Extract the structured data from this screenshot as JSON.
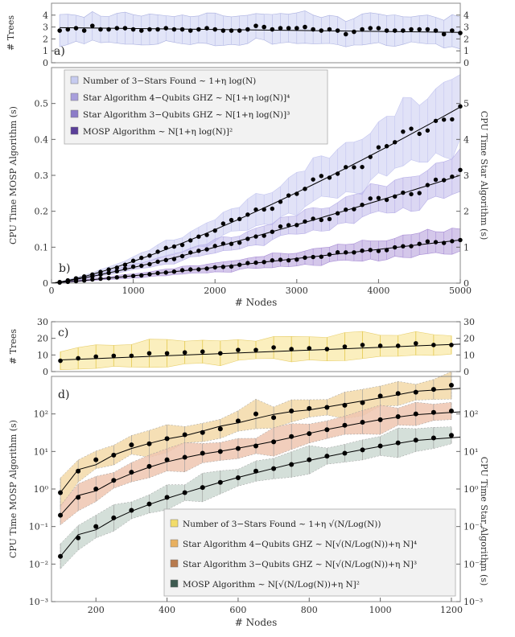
{
  "chart_data": [
    {
      "panel": "a",
      "panel_label": "a)",
      "type": "line",
      "ylabel": "# Trees",
      "xlabel": "",
      "xlim": [
        0,
        5000
      ],
      "ylim": [
        0,
        5
      ],
      "yticks": [
        0,
        1,
        2,
        3,
        4
      ],
      "yticks_right": [
        0,
        1,
        2,
        3,
        4
      ],
      "x_start": 100,
      "x_step": 100,
      "series": [
        {
          "values": [
            2.7,
            2.8,
            2.9,
            2.7,
            3.1,
            2.8,
            2.8,
            2.9,
            2.9,
            2.8,
            2.7,
            2.8,
            2.8,
            2.9,
            2.8,
            2.8,
            2.7,
            2.8,
            2.9,
            2.8,
            2.7,
            2.7,
            2.7,
            2.8,
            3.1,
            3.0,
            2.8,
            2.9,
            2.9,
            2.9,
            3.0,
            2.8,
            2.7,
            2.8,
            2.7,
            2.4,
            2.6,
            2.8,
            2.9,
            2.9,
            2.7,
            2.7,
            2.7,
            2.8,
            2.8,
            2.8,
            2.7,
            2.4,
            2.7,
            2.5
          ]
        }
      ],
      "fit": [
        2.95,
        2.55
      ],
      "band_halfwidth": 1.2
    },
    {
      "panel": "b",
      "panel_label": "b)",
      "type": "scatter",
      "xlabel": "# Nodes",
      "ylabel": "CPU Time MOSP Algorithm (s)",
      "ylabel_right": "CPU Time Star Algorithm (s)",
      "xlim": [
        0,
        5000
      ],
      "ylim": [
        0,
        0.6
      ],
      "xticks": [
        0,
        1000,
        2000,
        3000,
        4000,
        5000
      ],
      "yticks": [
        0,
        0.1,
        0.2,
        0.3,
        0.4,
        0.5
      ],
      "yticks_right": [
        0,
        1,
        2,
        3,
        4,
        5
      ],
      "legend_position": "top-left",
      "legend": [
        {
          "label": "Number of 3−Stars Found ∼ 1+η log(N)",
          "color": "#c6cbef"
        },
        {
          "label": "Star Algorithm 4−Qubits GHZ ∼ N[1+η log(N)]⁴",
          "color": "#a89fdc"
        },
        {
          "label": "Star Algorithm 3−Qubits GHZ ∼ N[1+η log(N)]³",
          "color": "#8c7cc8"
        },
        {
          "label": "MOSP Algorithm ∼ N[1+η log(N)]²",
          "color": "#5a3f99"
        }
      ],
      "series": [
        {
          "name": "Star Algorithm 4−Qubits GHZ",
          "xmax": 5000,
          "ymax": 0.49,
          "exp": 1.3,
          "points": 50,
          "band": 0.18,
          "fill": "#c4c6f0"
        },
        {
          "name": "Star Algorithm 3−Qubits GHZ",
          "xmax": 5000,
          "ymax": 0.3,
          "exp": 1.2,
          "points": 50,
          "band": 0.15,
          "fill": "#b8b0e8"
        },
        {
          "name": "MOSP Algorithm",
          "xmax": 5000,
          "ymax": 0.12,
          "exp": 1.1,
          "points": 50,
          "band": 0.25,
          "fill": "#a98fd6"
        }
      ]
    },
    {
      "panel": "c",
      "panel_label": "c)",
      "type": "line",
      "ylabel": "# Trees",
      "xlim": [
        75,
        1225
      ],
      "ylim": [
        0,
        30
      ],
      "yticks": [
        0,
        10,
        20,
        30
      ],
      "yticks_right": [
        0,
        10,
        20,
        30
      ],
      "x": [
        100,
        150,
        200,
        250,
        300,
        350,
        400,
        450,
        500,
        550,
        600,
        650,
        700,
        750,
        800,
        850,
        900,
        950,
        1000,
        1050,
        1100,
        1150,
        1200
      ],
      "values": [
        6.5,
        8,
        9,
        9.5,
        9.5,
        11,
        11,
        11.5,
        12,
        11,
        13,
        13,
        14.5,
        13.5,
        14,
        13.5,
        15,
        16,
        15.5,
        15.5,
        17,
        16,
        16
      ],
      "fit": [
        7,
        16.5
      ],
      "band_halfwidth": 7
    },
    {
      "panel": "d",
      "panel_label": "d)",
      "type": "scatter",
      "yscale": "log",
      "xlabel": "# Nodes",
      "ylabel": "CPU Time MOSP Algorithm (s)",
      "ylabel_right": "CPU Time Star Algorithm (s)",
      "xlim": [
        75,
        1225
      ],
      "ylim_log10": [
        -3,
        3
      ],
      "xticks": [
        200,
        400,
        600,
        800,
        1000,
        1200
      ],
      "yticks": [
        "10⁻³",
        "10⁻²",
        "10⁻¹",
        "10⁰",
        "10¹",
        "10²"
      ],
      "yticks_right": [
        "10⁻³",
        "10⁻²",
        "10⁻¹",
        "10⁰",
        "10¹",
        "10²"
      ],
      "legend_position": "bottom-right",
      "legend": [
        {
          "label": "Number of 3−Stars Found ∼ 1+η √(N/Log(N))",
          "color": "#f2dc6a"
        },
        {
          "label": "Star Algorithm 4−Qubits GHZ ∼ N[√(N/Log(N))+η N]⁴",
          "color": "#e8b060"
        },
        {
          "label": "Star Algorithm 3−Qubits GHZ ∼ N[√(N/Log(N))+η N]³",
          "color": "#b77a4e"
        },
        {
          "label": "MOSP Algorithm ∼ N[√(N/Log(N))+η N]²",
          "color": "#3d5a50"
        }
      ],
      "x": [
        100,
        150,
        200,
        250,
        300,
        350,
        400,
        450,
        500,
        550,
        600,
        650,
        700,
        750,
        800,
        850,
        900,
        950,
        1000,
        1050,
        1100,
        1150,
        1200
      ],
      "series": [
        {
          "name": "Star Algorithm 4−Qubits GHZ",
          "fill": "#f3d9a8",
          "values": [
            0.8,
            3,
            6,
            8,
            15,
            16,
            22,
            28,
            32,
            40,
            65,
            100,
            80,
            120,
            140,
            150,
            170,
            200,
            300,
            350,
            380,
            450,
            580
          ]
        },
        {
          "name": "Star Algorithm 3−Qubits GHZ",
          "fill": "#efc6b0",
          "values": [
            0.2,
            0.6,
            1.0,
            1.7,
            2.8,
            4,
            6,
            7,
            9,
            10,
            12,
            14,
            18,
            25,
            30,
            38,
            50,
            60,
            70,
            85,
            100,
            110,
            120
          ]
        },
        {
          "name": "MOSP Algorithm",
          "fill": "#cdd9d2",
          "values": [
            0.016,
            0.05,
            0.1,
            0.17,
            0.27,
            0.4,
            0.6,
            0.8,
            1.1,
            1.5,
            2.0,
            3.0,
            3.5,
            4.5,
            6,
            7.5,
            9,
            11,
            14,
            17,
            20,
            23,
            27
          ]
        }
      ]
    }
  ]
}
